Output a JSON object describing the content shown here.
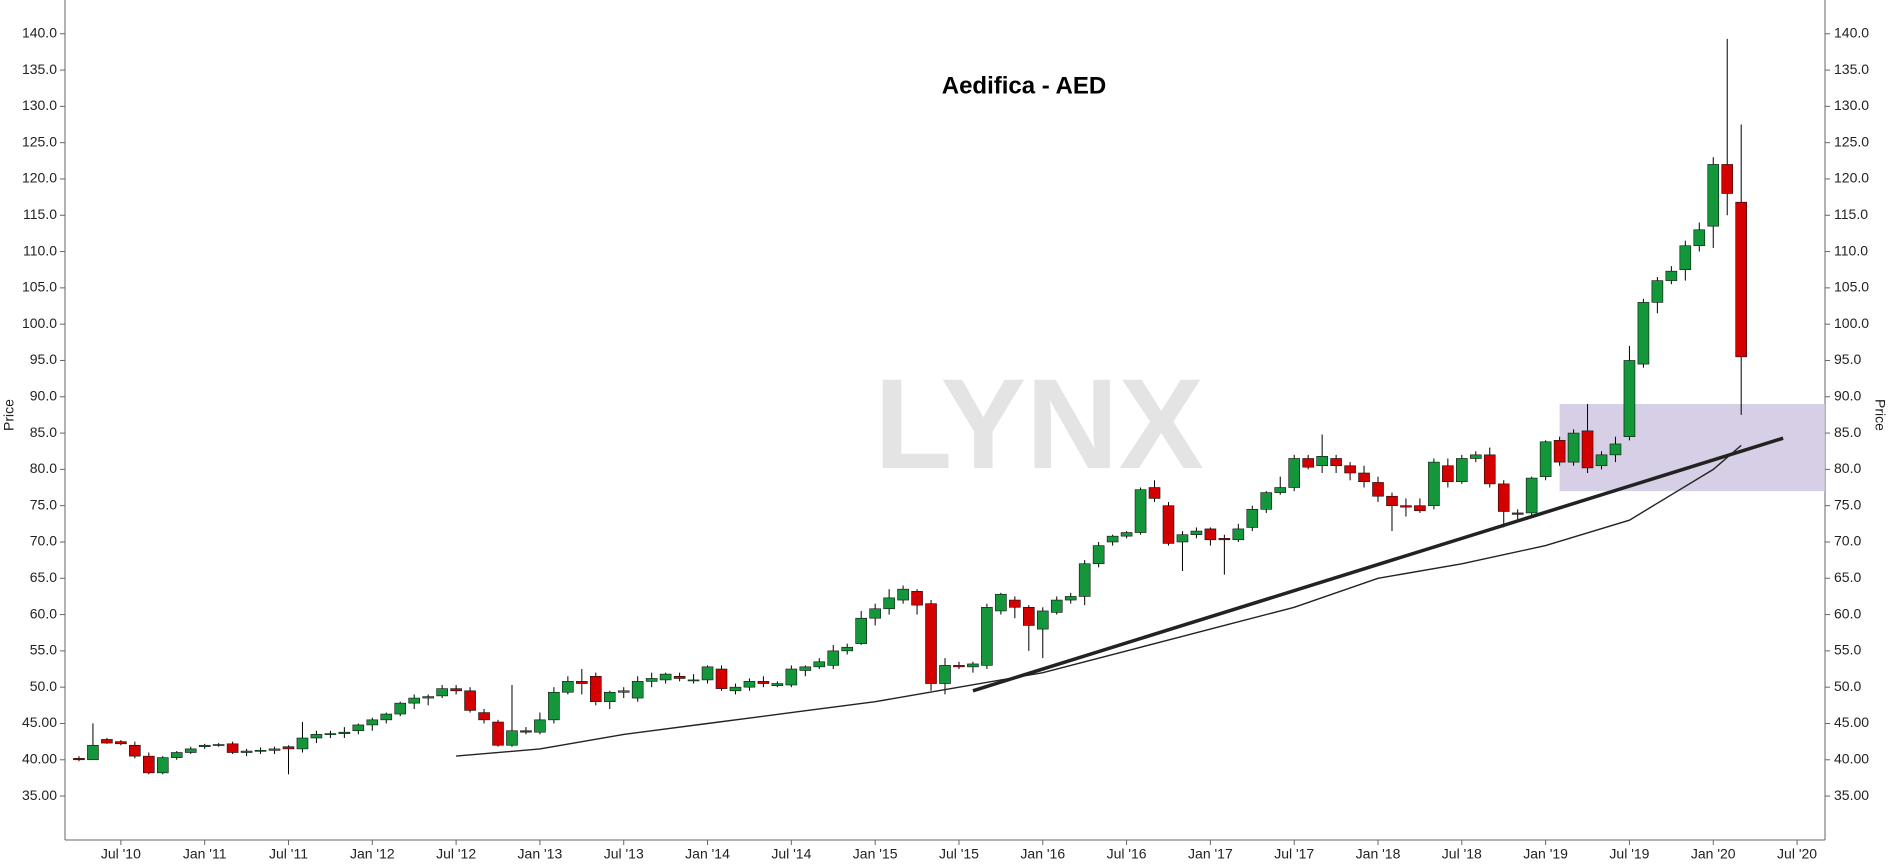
{
  "chart_data": {
    "type": "candlestick",
    "title": "Aedifica - AED",
    "watermark": "LYNX",
    "ylabel": "Price",
    "up_color": "#13973a",
    "down_color": "#d40000",
    "wick_color": "#000000",
    "x": [
      "2010-04",
      "2010-05",
      "2010-06",
      "2010-07",
      "2010-08",
      "2010-09",
      "2010-10",
      "2010-11",
      "2010-12",
      "2011-01",
      "2011-02",
      "2011-03",
      "2011-04",
      "2011-05",
      "2011-06",
      "2011-07",
      "2011-08",
      "2011-09",
      "2011-10",
      "2011-11",
      "2011-12",
      "2012-01",
      "2012-02",
      "2012-03",
      "2012-04",
      "2012-05",
      "2012-06",
      "2012-07",
      "2012-08",
      "2012-09",
      "2012-10",
      "2012-11",
      "2012-12",
      "2013-01",
      "2013-02",
      "2013-03",
      "2013-04",
      "2013-05",
      "2013-06",
      "2013-07",
      "2013-08",
      "2013-09",
      "2013-10",
      "2013-11",
      "2013-12",
      "2014-01",
      "2014-02",
      "2014-03",
      "2014-04",
      "2014-05",
      "2014-06",
      "2014-07",
      "2014-08",
      "2014-09",
      "2014-10",
      "2014-11",
      "2014-12",
      "2015-01",
      "2015-02",
      "2015-03",
      "2015-04",
      "2015-05",
      "2015-06",
      "2015-07",
      "2015-08",
      "2015-09",
      "2015-10",
      "2015-11",
      "2015-12",
      "2016-01",
      "2016-02",
      "2016-03",
      "2016-04",
      "2016-05",
      "2016-06",
      "2016-07",
      "2016-08",
      "2016-09",
      "2016-10",
      "2016-11",
      "2016-12",
      "2017-01",
      "2017-02",
      "2017-03",
      "2017-04",
      "2017-05",
      "2017-06",
      "2017-07",
      "2017-08",
      "2017-09",
      "2017-10",
      "2017-11",
      "2017-12",
      "2018-01",
      "2018-02",
      "2018-03",
      "2018-04",
      "2018-05",
      "2018-06",
      "2018-07",
      "2018-08",
      "2018-09",
      "2018-10",
      "2018-11",
      "2018-12",
      "2019-01",
      "2019-02",
      "2019-03",
      "2019-04",
      "2019-05",
      "2019-06",
      "2019-07",
      "2019-08",
      "2019-09",
      "2019-10",
      "2019-11",
      "2019-12",
      "2020-01",
      "2020-02",
      "2020-03"
    ],
    "open": [
      40.2,
      40,
      42.8,
      42.5,
      42,
      40.5,
      38.2,
      40.3,
      41,
      41.8,
      42,
      42.2,
      41,
      41.2,
      41.3,
      41.8,
      41.5,
      43,
      43.5,
      43.6,
      44,
      44.8,
      45.5,
      46.3,
      47.8,
      48.5,
      48.8,
      49.8,
      49.5,
      46.5,
      45.2,
      42,
      44,
      43.8,
      45.5,
      49.3,
      50.8,
      51.5,
      48,
      49.3,
      48.5,
      50.8,
      51,
      51.5,
      51,
      51,
      52.5,
      49.5,
      50,
      50.8,
      50.2,
      50.3,
      52.3,
      52.8,
      53,
      55,
      56,
      59.5,
      60.8,
      62,
      63.2,
      61.5,
      50.5,
      53,
      52.8,
      53,
      60.5,
      62,
      61,
      58,
      60.3,
      62,
      62.5,
      67,
      70,
      70.8,
      71.3,
      77.5,
      75,
      70,
      71,
      71.8,
      70.5,
      70.3,
      72,
      74.5,
      76.8,
      77.5,
      81.5,
      80.5,
      81.5,
      80.5,
      79.5,
      78.2,
      76.3,
      75,
      75,
      75,
      80.5,
      78.3,
      81.5,
      82,
      78,
      74,
      74,
      79,
      84,
      81,
      85.3,
      80.5,
      82,
      84.5,
      94.5,
      103,
      106,
      107.5,
      110.8,
      113.5,
      122,
      116.8
    ],
    "high": [
      40.5,
      45,
      43,
      42.7,
      42.5,
      41,
      40.5,
      41.2,
      41.8,
      42.2,
      42.3,
      42.5,
      41.5,
      41.7,
      41.8,
      42,
      45.2,
      44,
      44,
      44.5,
      45,
      45.8,
      46.5,
      48,
      49,
      49,
      50.3,
      50.3,
      50,
      47,
      45.5,
      50.3,
      44.5,
      46.5,
      50,
      51.5,
      52.5,
      52,
      49.5,
      50,
      51.5,
      52,
      52,
      52,
      51.8,
      53,
      53,
      50.5,
      51.2,
      51.5,
      50.8,
      53,
      53,
      54,
      55.8,
      56,
      60.5,
      61.5,
      63.5,
      64,
      63.5,
      62,
      54,
      53.5,
      53.5,
      61.5,
      63,
      62.5,
      61.3,
      61,
      62.5,
      63,
      67.5,
      70,
      71,
      71.5,
      77.5,
      78.5,
      75.5,
      71.5,
      72,
      72,
      71,
      72.5,
      75,
      77,
      79,
      82,
      82,
      84.8,
      82,
      81,
      80.5,
      79,
      76.8,
      76,
      76,
      81.5,
      81.5,
      82,
      82.5,
      83,
      78.5,
      74.5,
      79,
      84,
      84.5,
      85.5,
      89,
      82.5,
      84.5,
      97,
      103.5,
      106.5,
      108,
      111.5,
      114,
      123,
      139.3,
      127.5
    ],
    "low": [
      39.8,
      40,
      42.2,
      42,
      40.2,
      38,
      38,
      40,
      40.8,
      41.5,
      41.8,
      40.8,
      40.5,
      40.8,
      40.8,
      38,
      41,
      42.3,
      43,
      43,
      43.5,
      44,
      45,
      46,
      47,
      47.5,
      48.5,
      49,
      46.5,
      45,
      41.8,
      41.8,
      43.5,
      43.5,
      45,
      49,
      49,
      47.5,
      47,
      48.5,
      48,
      50,
      50.5,
      50.8,
      50.5,
      50.5,
      49.5,
      49,
      49.5,
      50,
      50,
      50,
      51.5,
      52.5,
      52.5,
      54.5,
      55.8,
      58.5,
      60,
      61.5,
      60,
      49.5,
      49,
      52.5,
      52,
      52.5,
      60,
      59.5,
      55,
      54,
      60,
      61.5,
      61.3,
      66.5,
      69.5,
      70.5,
      71,
      75.5,
      69.5,
      66,
      70.5,
      69.5,
      65.5,
      70,
      71.5,
      74,
      76.5,
      77,
      80,
      79.5,
      79.5,
      78.5,
      77.5,
      75.5,
      71.5,
      73.5,
      74,
      74.5,
      77.5,
      78,
      81,
      77.5,
      72,
      73,
      73.5,
      78.5,
      80.5,
      80.5,
      79.5,
      80,
      81,
      84,
      94,
      101.5,
      105.5,
      106,
      110,
      110.5,
      115,
      87.5
    ],
    "close": [
      40,
      42,
      42.3,
      42.2,
      40.5,
      38.2,
      40.3,
      41,
      41.5,
      42,
      42.1,
      41,
      41.2,
      41.3,
      41.5,
      41.5,
      43,
      43.5,
      43.6,
      43.8,
      44.8,
      45.5,
      46.3,
      47.8,
      48.5,
      48.7,
      49.8,
      49.5,
      46.8,
      45.5,
      42,
      44,
      43.8,
      45.5,
      49.3,
      50.8,
      50.5,
      48,
      49.3,
      49.5,
      50.8,
      51.2,
      51.8,
      51.2,
      51,
      52.8,
      49.8,
      50,
      50.8,
      50.5,
      50.5,
      52.5,
      52.8,
      53.5,
      55,
      55.5,
      59.5,
      60.8,
      62.3,
      63.5,
      61.3,
      50.5,
      53,
      52.8,
      53.2,
      61,
      62.8,
      61,
      58.5,
      60.5,
      62,
      62.5,
      67,
      69.5,
      70.8,
      71.3,
      77.2,
      76,
      69.8,
      71,
      71.5,
      70.3,
      70.3,
      71.8,
      74.5,
      76.8,
      77.5,
      81.5,
      80.3,
      81.8,
      80.5,
      79.5,
      78.3,
      76.3,
      75,
      74.8,
      74.3,
      81,
      78.3,
      81.5,
      82,
      78,
      74.2,
      73.8,
      78.8,
      83.8,
      81,
      85,
      80.2,
      82,
      83.5,
      95,
      103,
      106,
      107.3,
      110.8,
      113,
      122,
      118,
      95.5
    ],
    "moving_average": {
      "color": "#222222",
      "x": [
        "2012-07",
        "2013-01",
        "2013-07",
        "2014-01",
        "2014-07",
        "2015-01",
        "2015-07",
        "2016-01",
        "2016-07",
        "2017-01",
        "2017-07",
        "2018-01",
        "2018-07",
        "2019-01",
        "2019-07",
        "2019-10",
        "2020-01",
        "2020-03"
      ],
      "values": [
        40.5,
        41.5,
        43.5,
        45,
        46.5,
        48,
        50,
        52,
        55,
        58,
        61,
        65,
        67,
        69.5,
        73,
        76.5,
        80,
        83.3
      ]
    },
    "trendline": {
      "color": "#222222",
      "x": [
        "2015-08",
        "2020-06"
      ],
      "values": [
        49.5,
        84.3
      ]
    },
    "zone": {
      "color": "#cfc7e0",
      "x": [
        "2019-02",
        "2020-09"
      ],
      "ylim": [
        77,
        89
      ]
    },
    "xlim": [
      "2010-03",
      "2020-09"
    ],
    "ylim": [
      28.95,
      144.65
    ],
    "yticks": [
      {
        "value": 35,
        "label": "35.00"
      },
      {
        "value": 40,
        "label": "40.00"
      },
      {
        "value": 45,
        "label": "45.00"
      },
      {
        "value": 50,
        "label": "50.0"
      },
      {
        "value": 55,
        "label": "55.0"
      },
      {
        "value": 60,
        "label": "60.0"
      },
      {
        "value": 65,
        "label": "65.0"
      },
      {
        "value": 70,
        "label": "70.0"
      },
      {
        "value": 75,
        "label": "75.0"
      },
      {
        "value": 80,
        "label": "80.0"
      },
      {
        "value": 85,
        "label": "85.0"
      },
      {
        "value": 90,
        "label": "90.0"
      },
      {
        "value": 95,
        "label": "95.0"
      },
      {
        "value": 100,
        "label": "100.0"
      },
      {
        "value": 105,
        "label": "105.0"
      },
      {
        "value": 110,
        "label": "110.0"
      },
      {
        "value": 115,
        "label": "115.0"
      },
      {
        "value": 120,
        "label": "120.0"
      },
      {
        "value": 125,
        "label": "125.0"
      },
      {
        "value": 130,
        "label": "130.0"
      },
      {
        "value": 135,
        "label": "135.0"
      },
      {
        "value": 140,
        "label": "140.0"
      }
    ],
    "xticks": [
      {
        "value": "2010-07",
        "label": "Jul '10"
      },
      {
        "value": "2011-01",
        "label": "Jan '11"
      },
      {
        "value": "2011-07",
        "label": "Jul '11"
      },
      {
        "value": "2012-01",
        "label": "Jan '12"
      },
      {
        "value": "2012-07",
        "label": "Jul '12"
      },
      {
        "value": "2013-01",
        "label": "Jan '13"
      },
      {
        "value": "2013-07",
        "label": "Jul '13"
      },
      {
        "value": "2014-01",
        "label": "Jan '14"
      },
      {
        "value": "2014-07",
        "label": "Jul '14"
      },
      {
        "value": "2015-01",
        "label": "Jan '15"
      },
      {
        "value": "2015-07",
        "label": "Jul '15"
      },
      {
        "value": "2016-01",
        "label": "Jan '16"
      },
      {
        "value": "2016-07",
        "label": "Jul '16"
      },
      {
        "value": "2017-01",
        "label": "Jan '17"
      },
      {
        "value": "2017-07",
        "label": "Jul '17"
      },
      {
        "value": "2018-01",
        "label": "Jan '18"
      },
      {
        "value": "2018-07",
        "label": "Jul '18"
      },
      {
        "value": "2019-01",
        "label": "Jan '19"
      },
      {
        "value": "2019-07",
        "label": "Jul '19"
      },
      {
        "value": "2020-01",
        "label": "Jan '20"
      },
      {
        "value": "2020-07",
        "label": "Jul '20"
      }
    ]
  }
}
